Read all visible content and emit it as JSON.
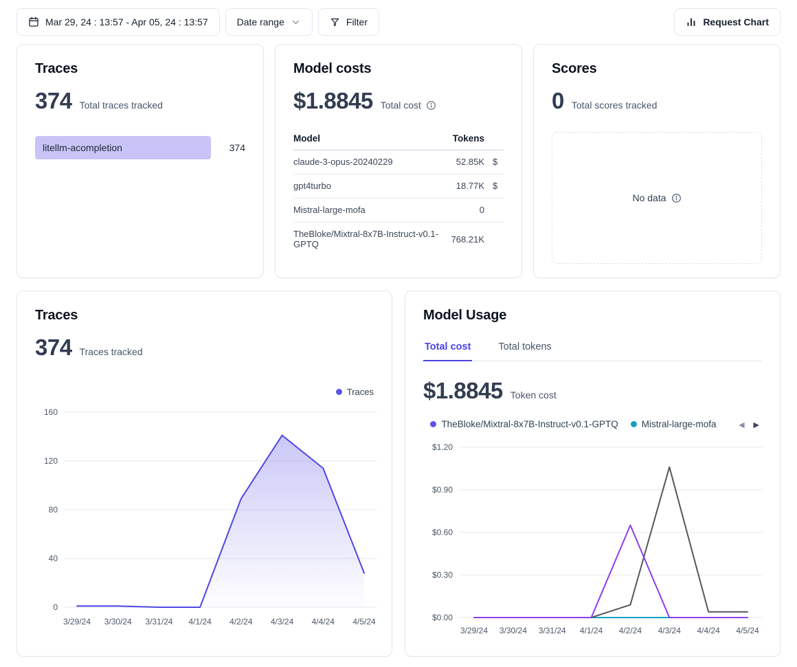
{
  "toolbar": {
    "date_range_value": "Mar 29, 24 : 13:57 - Apr 05, 24 : 13:57",
    "date_range_label": "Date range",
    "filter_label": "Filter",
    "request_chart_label": "Request Chart"
  },
  "cards": {
    "traces_summary": {
      "title": "Traces",
      "value": "374",
      "subtitle": "Total traces tracked",
      "bar": {
        "label": "litellm-acompletion",
        "value": "374"
      }
    },
    "model_costs": {
      "title": "Model costs",
      "value": "$1.8845",
      "subtitle": "Total cost",
      "table": {
        "columns": [
          "Model",
          "Tokens"
        ],
        "rows": [
          {
            "model": "claude-3-opus-20240229",
            "tokens": "52.85K",
            "usd_clipped": "$"
          },
          {
            "model": "gpt4turbo",
            "tokens": "18.77K",
            "usd_clipped": "$"
          },
          {
            "model": "Mistral-large-mofa",
            "tokens": "0",
            "usd_clipped": ""
          },
          {
            "model": "TheBloke/Mixtral-8x7B-Instruct-v0.1-GPTQ",
            "tokens": "768.21K",
            "usd_clipped": ""
          }
        ]
      }
    },
    "scores": {
      "title": "Scores",
      "value": "0",
      "subtitle": "Total scores tracked",
      "empty_text": "No data"
    },
    "traces_chart": {
      "title": "Traces",
      "value": "374",
      "subtitle": "Traces tracked",
      "legend": [
        {
          "label": "Traces",
          "color": "#5b54ea"
        }
      ]
    },
    "model_usage": {
      "title": "Model Usage",
      "tabs": [
        {
          "label": "Total cost",
          "active": true
        },
        {
          "label": "Total tokens",
          "active": false
        }
      ],
      "value": "$1.8845",
      "subtitle": "Token cost",
      "legend": [
        {
          "label": "TheBloke/Mixtral-8x7B-Instruct-v0.1-GPTQ",
          "color": "#5b54ea"
        },
        {
          "label": "Mistral-large-mofa",
          "color": "#12a0bf"
        }
      ]
    }
  },
  "chart_data": [
    {
      "id": "traces",
      "type": "area",
      "title": "Traces tracked per day",
      "x": [
        "3/29/24",
        "3/30/24",
        "3/31/24",
        "4/1/24",
        "4/2/24",
        "4/3/24",
        "4/4/24",
        "4/5/24"
      ],
      "series": [
        {
          "name": "Traces",
          "color": "#4f46e5",
          "fill": true,
          "values": [
            1,
            1,
            0,
            0,
            89,
            141,
            114,
            28
          ]
        }
      ],
      "ylim": [
        0,
        160
      ],
      "yticks": [
        0,
        40,
        80,
        120,
        160
      ],
      "legend_position": "top-right",
      "grid": true
    },
    {
      "id": "usage",
      "type": "line",
      "title": "Token cost per day by model",
      "x": [
        "3/29/24",
        "3/30/24",
        "3/31/24",
        "4/1/24",
        "4/2/24",
        "4/3/24",
        "4/4/24",
        "4/5/24"
      ],
      "series": [
        {
          "name": "TheBloke/Mixtral-8x7B-Instruct-v0.1-GPTQ",
          "color": "#5b54ea",
          "values": [
            0,
            0,
            0,
            0,
            0,
            0,
            0,
            0
          ]
        },
        {
          "name": "Mistral-large-mofa",
          "color": "#12a0bf",
          "values": [
            null,
            null,
            null,
            0,
            0,
            0,
            null,
            null
          ]
        },
        {
          "name": "claude-3-opus-20240229",
          "color": "#55555e",
          "values": [
            0,
            0,
            0,
            0,
            0.09,
            1.06,
            0.04,
            0.04
          ]
        },
        {
          "name": "gpt4turbo",
          "color": "#8b3dee",
          "values": [
            0,
            0,
            0,
            0,
            0.65,
            0,
            0,
            0
          ]
        }
      ],
      "ylim": [
        0,
        1.2
      ],
      "yticks": [
        "$0.00",
        "$0.30",
        "$0.60",
        "$0.90",
        "$1.20"
      ],
      "legend_position": "top-center",
      "grid": true
    }
  ]
}
